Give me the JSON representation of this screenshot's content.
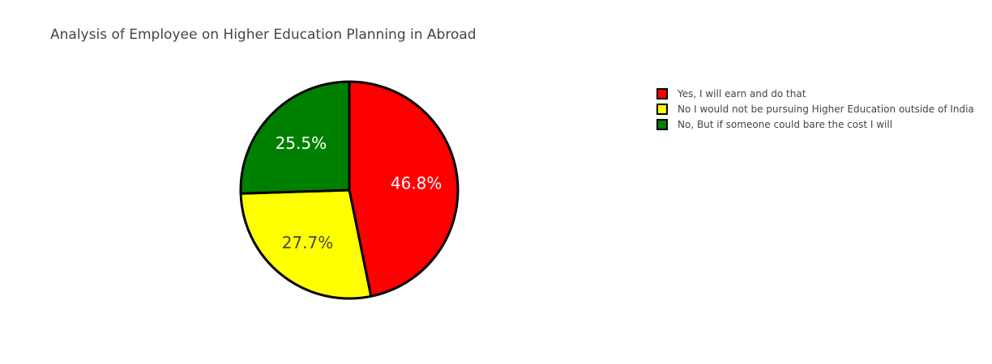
{
  "chart_data": {
    "type": "pie",
    "title": "Analysis of Employee on Higher Education Planning in Abroad",
    "categories": [
      "Yes, I will earn and do that",
      "No I would not be pursuing Higher Education outside of India",
      "No, But if someone could bare the cost I will"
    ],
    "values": [
      46.8,
      27.7,
      25.5
    ],
    "labels": [
      "46.8%",
      "27.7%",
      "25.5%"
    ],
    "colors": [
      "#ff0000",
      "#ffff00",
      "#008000"
    ],
    "label_colors": [
      "#ffffff",
      "#444444",
      "#ffffff"
    ],
    "legend_position": "top-right"
  }
}
